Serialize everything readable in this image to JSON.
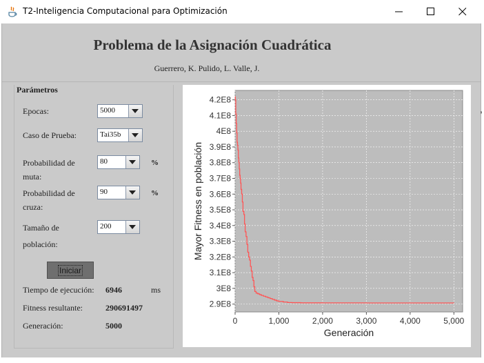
{
  "window": {
    "title": "T2-Inteligencia Computacional para Optimización",
    "controls": [
      "minimize",
      "maximize",
      "close"
    ]
  },
  "header": {
    "title": "Problema de la Asignación Cuadrática",
    "authors": "Guerrero, K. Pulido, L. Valle, J."
  },
  "params": {
    "section_title": "Parámetros",
    "epocas": {
      "label": "Epocas:",
      "value": "5000"
    },
    "caso": {
      "label": "Caso de Prueba:",
      "value": "Tai35b"
    },
    "mutacion": {
      "label_line1": "Probabilidad de",
      "label_line2": "muta:",
      "value": "80",
      "unit": "%"
    },
    "cruza": {
      "label_line1": "Probabilidad de",
      "label_line2": "cruza:",
      "value": "90",
      "unit": "%"
    },
    "poblacion": {
      "label_line1": "Tamaño de",
      "label_line2": "población:",
      "value": "200"
    },
    "start_button": "Iniciar"
  },
  "results": {
    "tiempo": {
      "label": "Tiempo de ejecución:",
      "value": "6946",
      "unit": "ms"
    },
    "fitness": {
      "label": "Fitness resultante:",
      "value": "290691497"
    },
    "generacion": {
      "label": "Generación:",
      "value": "5000"
    }
  },
  "chart_data": {
    "type": "line",
    "xlabel": "Generación",
    "ylabel": "Mayor Fitness en población",
    "xlim": [
      0,
      5200
    ],
    "ylim": [
      285000000,
      426000000
    ],
    "x_ticks": [
      "0",
      "1,000",
      "2,000",
      "3,000",
      "4,000",
      "5,000"
    ],
    "x_tick_values": [
      0,
      1000,
      2000,
      3000,
      4000,
      5000
    ],
    "y_ticks": [
      "2.9E8",
      "3E8",
      "3.1E8",
      "3.2E8",
      "3.3E8",
      "3.4E8",
      "3.5E8",
      "3.6E8",
      "3.7E8",
      "3.8E8",
      "3.9E8",
      "4E8",
      "4.1E8",
      "4.2E8"
    ],
    "y_tick_values": [
      290000000,
      300000000,
      310000000,
      320000000,
      330000000,
      340000000,
      350000000,
      360000000,
      370000000,
      380000000,
      390000000,
      400000000,
      410000000,
      420000000
    ],
    "grid": true,
    "line_color": "#ff5555",
    "background_color": "#bdbdbd",
    "series": [
      {
        "x": [
          0,
          5,
          15,
          25,
          35,
          45,
          55,
          65,
          75,
          85,
          95,
          105,
          115,
          125,
          135,
          150,
          165,
          180,
          200,
          215,
          230,
          250,
          270,
          290,
          310,
          330,
          350,
          370,
          390,
          410,
          430,
          450,
          480,
          520,
          560,
          600,
          650,
          700,
          750,
          800,
          850,
          900,
          950,
          1000,
          1100,
          1200,
          1300,
          1500,
          2000,
          3000,
          4000,
          5000
        ],
        "y": [
          422000000,
          420000000,
          411000000,
          405000000,
          399000000,
          393000000,
          391000000,
          388000000,
          383000000,
          380000000,
          376000000,
          372000000,
          370000000,
          367000000,
          363000000,
          360000000,
          355000000,
          349000000,
          347000000,
          341000000,
          336000000,
          333000000,
          328000000,
          323000000,
          320000000,
          318000000,
          314000000,
          311000000,
          307000000,
          305000000,
          301000000,
          298000000,
          297000000,
          296500000,
          296000000,
          295500000,
          295000000,
          294500000,
          294000000,
          293500000,
          293000000,
          292500000,
          292000000,
          291700000,
          291300000,
          291000000,
          290900000,
          290800000,
          290750000,
          290720000,
          290700000,
          290691497
        ]
      }
    ]
  }
}
